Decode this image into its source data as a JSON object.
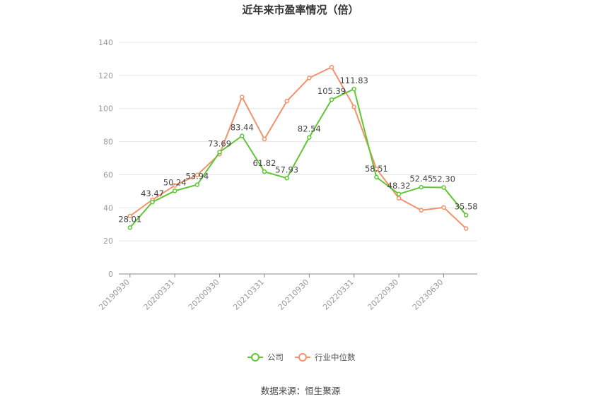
{
  "chart_data": {
    "type": "line",
    "title": "近年来市盈率情况（倍）",
    "source": "数据来源：恒生聚源",
    "ylim": [
      0,
      140
    ],
    "yticks": [
      0,
      20,
      40,
      60,
      80,
      100,
      120,
      140
    ],
    "x_tick_labels": [
      "20190930",
      "20200331",
      "20200930",
      "20210331",
      "20210930",
      "20220331",
      "20220930",
      "20230630"
    ],
    "series": [
      {
        "name": "公司",
        "color": "#5fc732",
        "values": [
          28.01,
          43.47,
          50.24,
          53.94,
          73.69,
          83.44,
          61.82,
          57.93,
          82.54,
          105.39,
          111.83,
          58.51,
          48.32,
          52.45,
          52.3,
          35.58
        ],
        "labels": [
          "28.01",
          "43.47",
          "50.24",
          "53.94",
          "73.69",
          "83.44",
          "61.82",
          "57.93",
          "82.54",
          "105.39",
          "111.83",
          "58.51",
          "48.32",
          "52.45",
          "52.30",
          "35.58"
        ]
      },
      {
        "name": "行业中位数",
        "color": "#f2926a",
        "values": [
          35.0,
          44.8,
          53.5,
          59.8,
          72.5,
          107.0,
          81.5,
          104.5,
          118.5,
          125.0,
          101.0,
          63.5,
          45.8,
          38.5,
          40.2,
          27.5
        ]
      }
    ],
    "grid": true,
    "legend_position": "bottom"
  }
}
